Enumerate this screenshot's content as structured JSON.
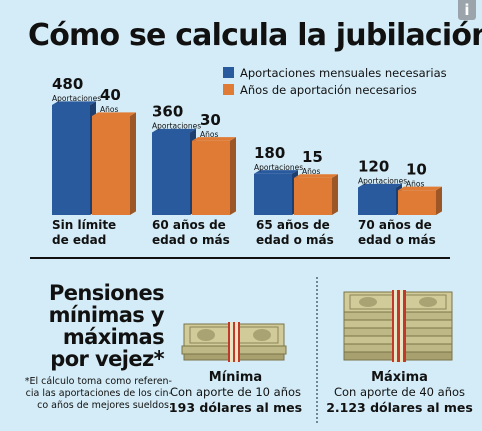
{
  "title": "Cómo se calcula la jubilación",
  "info_badge": "i",
  "chart_data": {
    "type": "bar",
    "categories": [
      "Sin límite de edad",
      "60 años de edad o más",
      "65 años de edad o más",
      "70 años de edad o más"
    ],
    "category_lines": [
      [
        "Sin límite",
        "de edad"
      ],
      [
        "60 años de",
        "edad o más"
      ],
      [
        "65 años de",
        "edad o más"
      ],
      [
        "70 años de",
        "edad o más"
      ]
    ],
    "series": [
      {
        "name": "Aportaciones mensuales necesarias",
        "values": [
          480,
          360,
          180,
          120
        ],
        "unit": "Aportaciones",
        "color": "#2a5a9e"
      },
      {
        "name": "Años de aportación necesarios",
        "values": [
          40,
          30,
          15,
          10
        ],
        "unit": "Años",
        "color": "#e07b35"
      }
    ],
    "legend_position": "top-right"
  },
  "pensiones": {
    "title_lines": [
      "Pensiones",
      "mínimas y",
      "máximas",
      "por vejez*"
    ],
    "note_lines": [
      "*El cálculo toma como referen-",
      "cia las aportaciones de los cin-",
      "co años de mejores sueldos."
    ],
    "minima": {
      "label": "Mínima",
      "line": "Con aporte de 10 años",
      "amount": "193 dólares al mes"
    },
    "maxima": {
      "label": "Máxima",
      "line": "Con aporte de 40 años",
      "amount": "2.123 dólares al mes"
    }
  },
  "colors": {
    "blue": "#2a5a9e",
    "orange": "#e07b35",
    "background": "#d4ecf7",
    "bill": "#c9c392",
    "band": "#c0392b"
  }
}
